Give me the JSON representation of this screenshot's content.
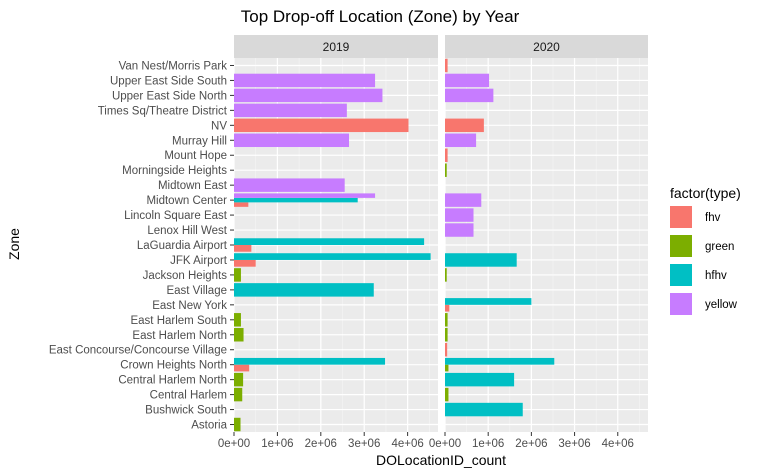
{
  "chart_data": {
    "type": "bar",
    "orientation": "horizontal",
    "title": "Top Drop-off Location (Zone) by Year",
    "xlabel": "DOLocationID_count",
    "ylabel": "Zone",
    "xlim": [
      0,
      4700000
    ],
    "x_ticks": [
      0,
      1000000,
      2000000,
      3000000,
      4000000
    ],
    "x_tick_labels": [
      "0e+00",
      "1e+06",
      "2e+06",
      "3e+06",
      "4e+06"
    ],
    "legend": {
      "title": "factor(type)",
      "position": "right",
      "entries": [
        "fhv",
        "green",
        "hfhv",
        "yellow"
      ]
    },
    "colors": {
      "fhv": "#F8766D",
      "green": "#7CAE00",
      "hfhv": "#00BFC4",
      "yellow": "#C77CFF"
    },
    "type_order": [
      "fhv",
      "green",
      "hfhv",
      "yellow"
    ],
    "grid": true,
    "facets": [
      "2019",
      "2020"
    ],
    "categories": [
      "Van Nest/Morris Park",
      "Upper East Side South",
      "Upper East Side North",
      "Times Sq/Theatre District",
      "NV",
      "Murray Hill",
      "Mount Hope",
      "Morningside Heights",
      "Midtown East",
      "Midtown Center",
      "Lincoln Square East",
      "Lenox Hill West",
      "LaGuardia Airport",
      "JFK Airport",
      "Jackson Heights",
      "East Village",
      "East New York",
      "East Harlem South",
      "East Harlem North",
      "East Concourse/Concourse Village",
      "Crown Heights North",
      "Central Harlem North",
      "Central Harlem",
      "Bushwick South",
      "Astoria"
    ],
    "data": {
      "2019": {
        "Upper East Side South": {
          "yellow": 3250000
        },
        "Upper East Side North": {
          "yellow": 3420000
        },
        "Times Sq/Theatre District": {
          "yellow": 2600000
        },
        "NV": {
          "fhv": 4020000
        },
        "Murray Hill": {
          "yellow": 2650000
        },
        "Midtown East": {
          "yellow": 2550000
        },
        "Midtown Center": {
          "fhv": 330000,
          "hfhv": 2850000,
          "yellow": 3250000
        },
        "LaGuardia Airport": {
          "fhv": 400000,
          "hfhv": 4380000
        },
        "JFK Airport": {
          "fhv": 500000,
          "hfhv": 4530000
        },
        "Jackson Heights": {
          "green": 160000
        },
        "East Village": {
          "hfhv": 3220000
        },
        "East Harlem South": {
          "green": 160000
        },
        "East Harlem North": {
          "green": 220000
        },
        "Crown Heights North": {
          "fhv": 350000,
          "hfhv": 3480000
        },
        "Central Harlem North": {
          "green": 210000
        },
        "Central Harlem": {
          "green": 190000
        },
        "Astoria": {
          "green": 150000
        }
      },
      "2020": {
        "Van Nest/Morris Park": {
          "fhv": 60000
        },
        "Upper East Side South": {
          "yellow": 1020000
        },
        "Upper East Side North": {
          "yellow": 1120000
        },
        "NV": {
          "fhv": 900000
        },
        "Murray Hill": {
          "yellow": 720000
        },
        "Mount Hope": {
          "fhv": 60000
        },
        "Morningside Heights": {
          "green": 40000
        },
        "Midtown Center": {
          "yellow": 840000
        },
        "Lincoln Square East": {
          "yellow": 660000
        },
        "Lenox Hill West": {
          "yellow": 660000
        },
        "JFK Airport": {
          "hfhv": 1660000
        },
        "Jackson Heights": {
          "green": 40000
        },
        "East New York": {
          "fhv": 100000,
          "hfhv": 2000000
        },
        "East Harlem South": {
          "green": 60000
        },
        "East Harlem North": {
          "green": 60000
        },
        "East Concourse/Concourse Village": {
          "fhv": 50000
        },
        "Crown Heights North": {
          "green": 80000,
          "hfhv": 2530000
        },
        "Central Harlem North": {
          "hfhv": 1600000
        },
        "Central Harlem": {
          "green": 80000
        },
        "Bushwick South": {
          "hfhv": 1800000
        }
      }
    }
  }
}
